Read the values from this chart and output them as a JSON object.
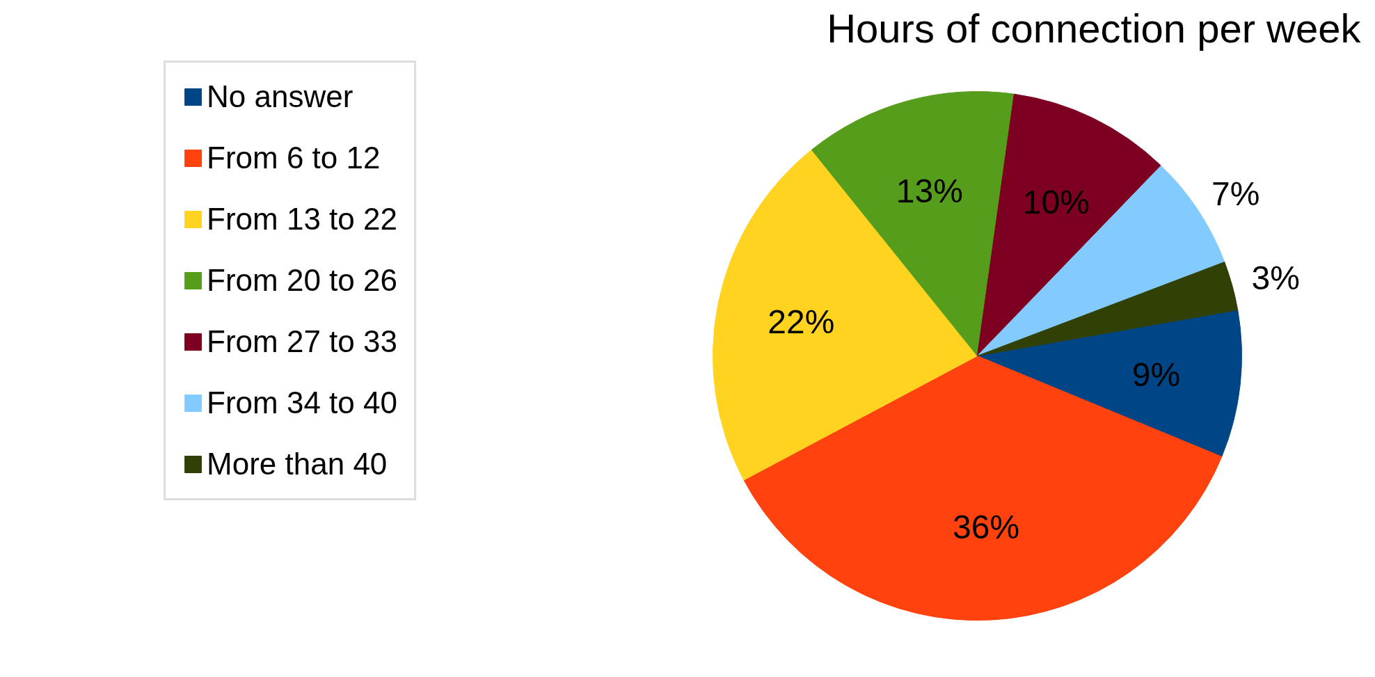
{
  "chart_data": {
    "type": "pie",
    "title": "Hours of connection per week",
    "categories": [
      "No answer",
      "From 6 to 12",
      "From 13 to 22",
      "From 20 to 26",
      "From 27 to 33",
      "From 34 to 40",
      "More than 40"
    ],
    "values": [
      9,
      36,
      22,
      13,
      10,
      7,
      3
    ],
    "colors": [
      "#004586",
      "#ff420e",
      "#ffd320",
      "#579d1c",
      "#7e0021",
      "#83caff",
      "#314004"
    ],
    "value_labels": [
      "9%",
      "36%",
      "22%",
      "13%",
      "10%",
      "7%",
      "3%"
    ],
    "legend": "left"
  }
}
